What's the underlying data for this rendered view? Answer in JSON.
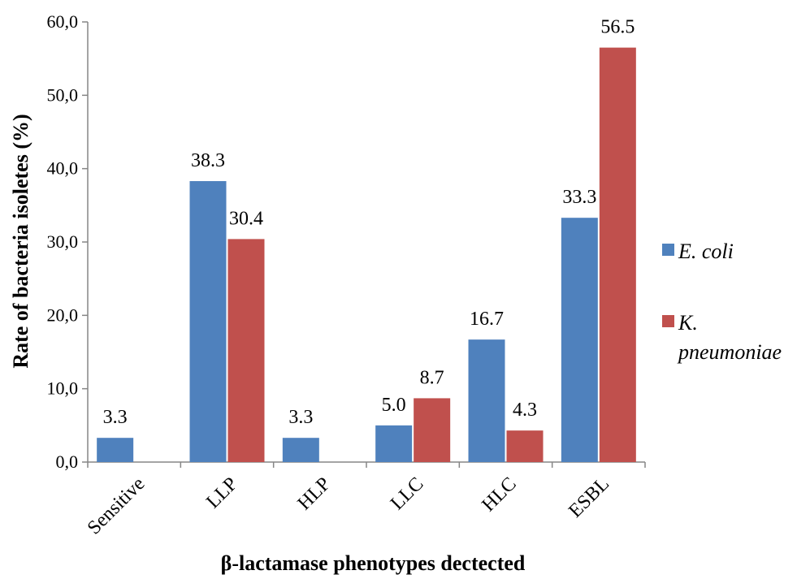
{
  "chart_data": {
    "type": "bar",
    "title": "",
    "xlabel": "β-lactamase  phenotypes dectected",
    "ylabel": "Rate of bacteria isoletes (%)",
    "ylim": [
      0,
      60
    ],
    "yticks": [
      "0,0",
      "10,0",
      "20,0",
      "30,0",
      "40,0",
      "50,0",
      "60,0"
    ],
    "categories": [
      "Sensitive",
      "LLP",
      "HLP",
      "LLC",
      "HLC",
      "ESBL"
    ],
    "series": [
      {
        "name": "E. coli",
        "color": "#4f81bd",
        "values": [
          3.3,
          38.3,
          3.3,
          5.0,
          16.7,
          33.3
        ],
        "labels": [
          "3.3",
          "38.3",
          "3.3",
          "5.0",
          "16.7",
          "33.3"
        ]
      },
      {
        "name": "K. pneumoniae",
        "legend_lines": [
          "K.",
          "pneumoniae"
        ],
        "color": "#c0504d",
        "values": [
          null,
          30.4,
          null,
          8.7,
          4.3,
          56.5
        ],
        "labels": [
          "",
          "30.4",
          "",
          "8.7",
          "4.3",
          "56.5"
        ]
      }
    ],
    "grid": false,
    "legend_position": "right"
  }
}
